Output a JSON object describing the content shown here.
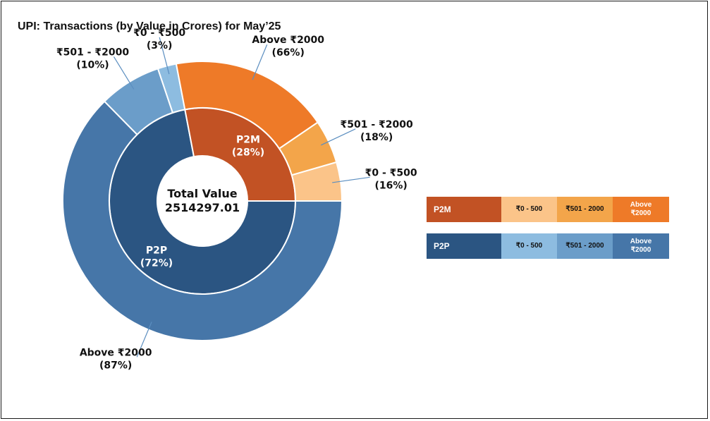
{
  "title": "UPI: Transactions (by Value in Crores) for May’25",
  "chart_data": {
    "type": "pie",
    "center_label": "Total Value",
    "center_value": "2514297.01",
    "inner": [
      {
        "label": "P2P",
        "pct_label": "(72%)",
        "value": 72,
        "color": "#2b5582"
      },
      {
        "label": "P2M",
        "pct_label": "(28%)",
        "value": 28,
        "color": "#c25224"
      }
    ],
    "outer": [
      {
        "group": "P2P",
        "label": "Above ₹2000",
        "pct_label": "(87%)",
        "value": 87,
        "color": "#4676a8"
      },
      {
        "group": "P2P",
        "label": "₹501 - ₹2000",
        "pct_label": "(10%)",
        "value": 10,
        "color": "#6b9dc9"
      },
      {
        "group": "P2P",
        "label": "₹0 - ₹500",
        "pct_label": "(3%)",
        "value": 3,
        "color": "#8dbce0"
      },
      {
        "group": "P2M",
        "label": "Above ₹2000",
        "pct_label": "(66%)",
        "value": 66,
        "color": "#ee7a28"
      },
      {
        "group": "P2M",
        "label": "₹501 - ₹2000",
        "pct_label": "(18%)",
        "value": 18,
        "color": "#f3a54a"
      },
      {
        "group": "P2M",
        "label": "₹0 - ₹500",
        "pct_label": "(16%)",
        "value": 16,
        "color": "#fbc489"
      }
    ]
  },
  "legend": {
    "p2m": {
      "label": "P2M",
      "colors": {
        "head": "#c25224",
        "c1": "#fbc489",
        "c2": "#f3a54a",
        "c3": "#ee7a28"
      },
      "cells": [
        "₹0 - 500",
        "₹501 - 2000",
        "Above ₹2000"
      ]
    },
    "p2p": {
      "label": "P2P",
      "colors": {
        "head": "#2b5582",
        "c1": "#8dbce0",
        "c2": "#6b9dc9",
        "c3": "#4676a8"
      },
      "cells": [
        "₹0 - 500",
        "₹501 - 2000",
        "Above ₹2000"
      ]
    }
  }
}
